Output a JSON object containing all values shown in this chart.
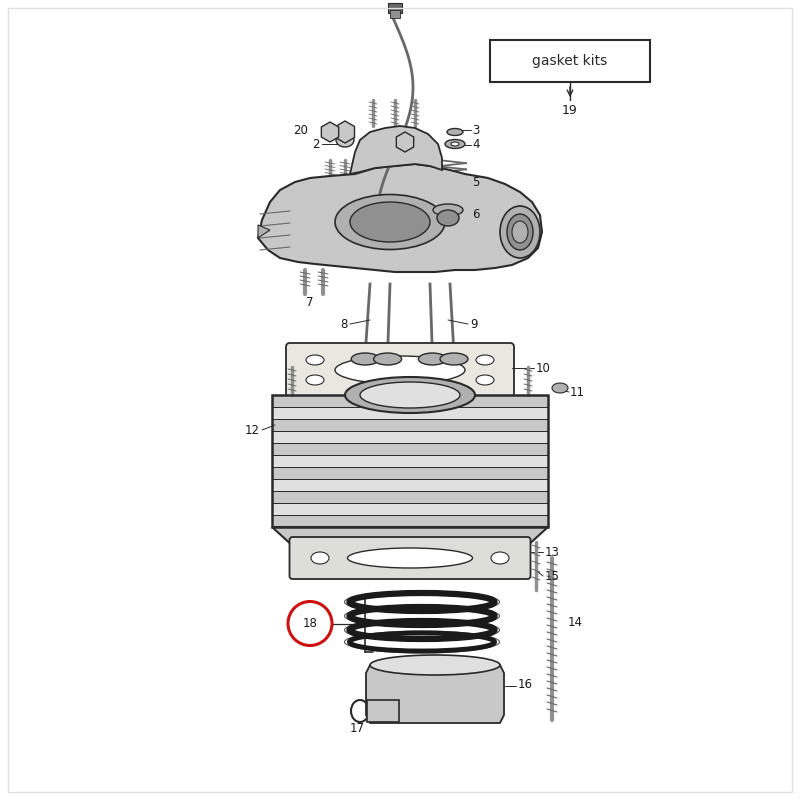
{
  "bg_color": "#ffffff",
  "line_color": "#2a2a2a",
  "label_color": "#1a1a1a",
  "gasket_box_text": "gasket kits",
  "figsize": [
    8.0,
    8.0
  ],
  "dpi": 100,
  "gray1": "#c8c8c8",
  "gray2": "#b0b0b0",
  "gray3": "#909090",
  "gray4": "#686868",
  "gray5": "#e0e0e0",
  "red_circle": "#cc1111"
}
